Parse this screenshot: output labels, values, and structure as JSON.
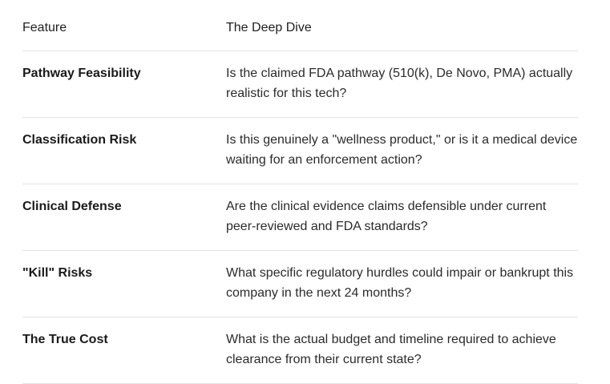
{
  "table": {
    "header": [
      "Feature",
      "The Deep Dive"
    ],
    "rows": [
      [
        "Pathway Feasibility",
        "Is the claimed FDA pathway (510(k), De Novo, PMA) actually realistic for this tech?"
      ],
      [
        "Classification Risk",
        "Is this genuinely a \"wellness product,\" or is it a medical device waiting for an enforcement action?"
      ],
      [
        "Clinical Defense",
        "Are the clinical evidence claims defensible under current peer-reviewed and FDA standards?"
      ],
      [
        "\"Kill\" Risks",
        "What specific regulatory hurdles could impair or bankrupt this company in the next 24 months?"
      ],
      [
        "The True Cost",
        "What is the actual budget and timeline required to achieve clearance from their current state?"
      ]
    ]
  }
}
